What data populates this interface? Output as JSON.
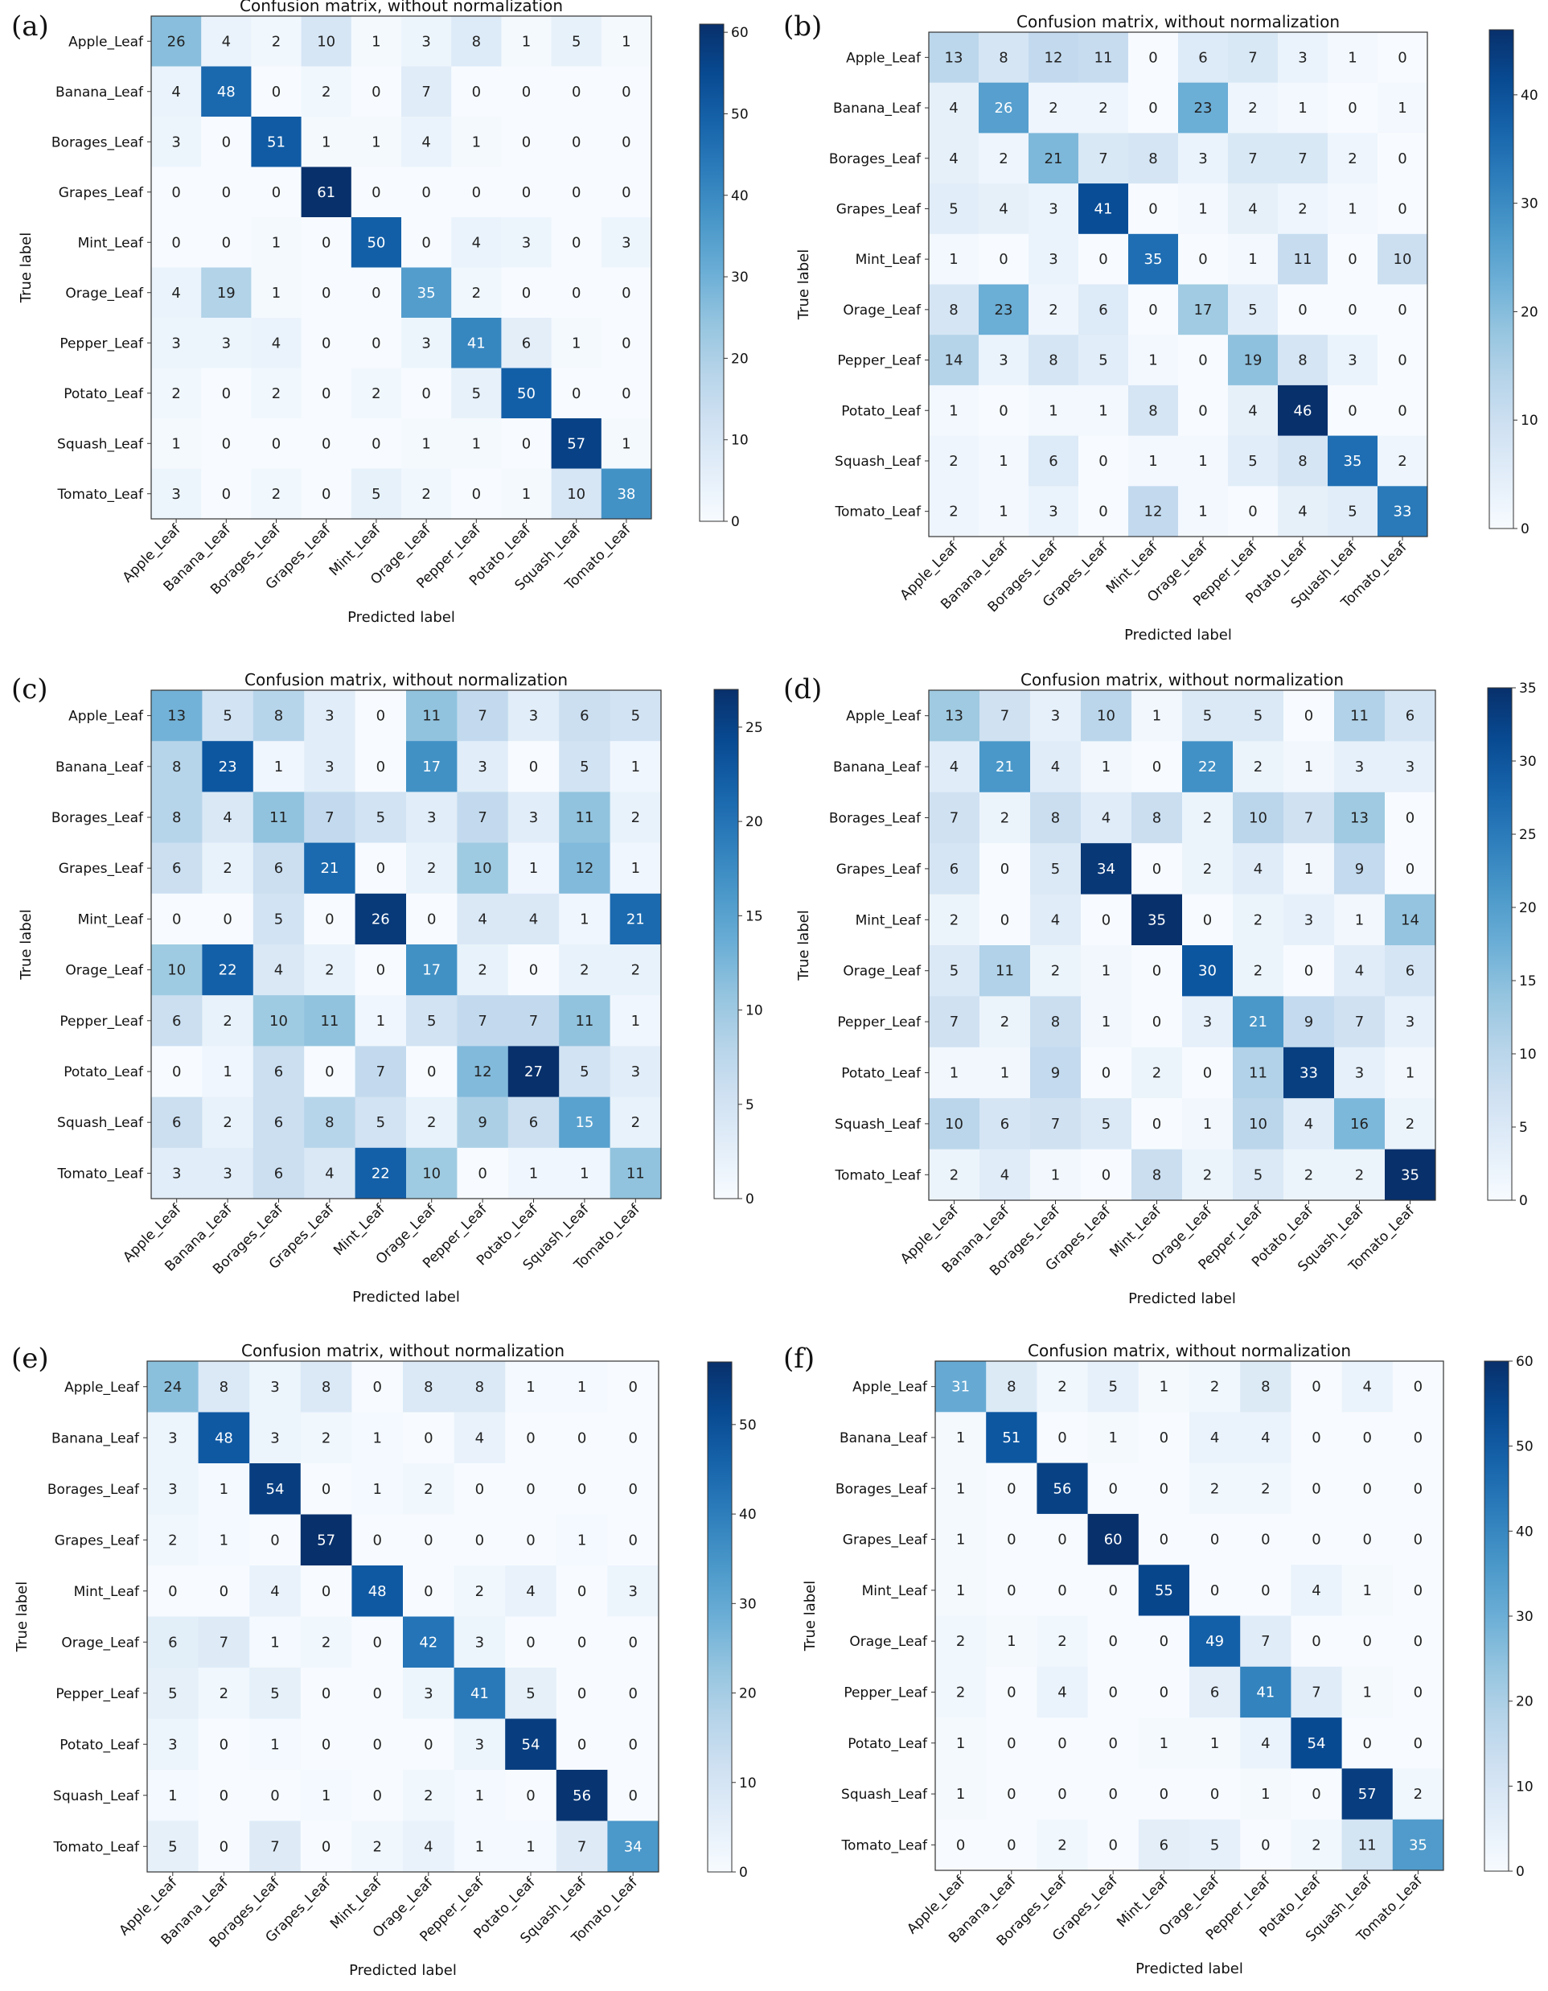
{
  "colormap": {
    "name": "Blues",
    "low": "#f7fbff",
    "high": "#08306b"
  },
  "chart_data": [
    {
      "panel": "(a)",
      "type": "heatmap",
      "title": "Confusion matrix, without normalization",
      "xlabel": "Predicted label",
      "ylabel": "True label",
      "labels": [
        "Apple_Leaf",
        "Banana_Leaf",
        "Borages_Leaf",
        "Grapes_Leaf",
        "Mint_Leaf",
        "Orage_Leaf",
        "Pepper_Leaf",
        "Potato_Leaf",
        "Squash_Leaf",
        "Tomato_Leaf"
      ],
      "colorbar": {
        "min": 0,
        "max": 61,
        "ticks": [
          0,
          10,
          20,
          30,
          40,
          50,
          60
        ]
      },
      "matrix": [
        [
          26,
          4,
          2,
          10,
          1,
          3,
          8,
          1,
          5,
          1
        ],
        [
          4,
          48,
          0,
          2,
          0,
          7,
          0,
          0,
          0,
          0
        ],
        [
          3,
          0,
          51,
          1,
          1,
          4,
          1,
          0,
          0,
          0
        ],
        [
          0,
          0,
          0,
          61,
          0,
          0,
          0,
          0,
          0,
          0
        ],
        [
          0,
          0,
          1,
          0,
          50,
          0,
          4,
          3,
          0,
          3
        ],
        [
          4,
          19,
          1,
          0,
          0,
          35,
          2,
          0,
          0,
          0
        ],
        [
          3,
          3,
          4,
          0,
          0,
          3,
          41,
          6,
          1,
          0
        ],
        [
          2,
          0,
          2,
          0,
          2,
          0,
          5,
          50,
          0,
          0
        ],
        [
          1,
          0,
          0,
          0,
          0,
          1,
          1,
          0,
          57,
          1
        ],
        [
          3,
          0,
          2,
          0,
          5,
          2,
          0,
          1,
          10,
          38
        ]
      ]
    },
    {
      "panel": "(b)",
      "type": "heatmap",
      "title": "Confusion matrix, without normalization",
      "xlabel": "Predicted label",
      "ylabel": "True label",
      "labels": [
        "Apple_Leaf",
        "Banana_Leaf",
        "Borages_Leaf",
        "Grapes_Leaf",
        "Mint_Leaf",
        "Orage_Leaf",
        "Pepper_Leaf",
        "Potato_Leaf",
        "Squash_Leaf",
        "Tomato_Leaf"
      ],
      "colorbar": {
        "min": 0,
        "max": 46,
        "ticks": [
          0,
          10,
          20,
          30,
          40
        ]
      },
      "matrix": [
        [
          13,
          8,
          12,
          11,
          0,
          6,
          7,
          3,
          1,
          0
        ],
        [
          4,
          26,
          2,
          2,
          0,
          23,
          2,
          1,
          0,
          1
        ],
        [
          4,
          2,
          21,
          7,
          8,
          3,
          7,
          7,
          2,
          0
        ],
        [
          5,
          4,
          3,
          41,
          0,
          1,
          4,
          2,
          1,
          0
        ],
        [
          1,
          0,
          3,
          0,
          35,
          0,
          1,
          11,
          0,
          10
        ],
        [
          8,
          23,
          2,
          6,
          0,
          17,
          5,
          0,
          0,
          0
        ],
        [
          14,
          3,
          8,
          5,
          1,
          0,
          19,
          8,
          3,
          0
        ],
        [
          1,
          0,
          1,
          1,
          8,
          0,
          4,
          46,
          0,
          0
        ],
        [
          2,
          1,
          6,
          0,
          1,
          1,
          5,
          8,
          35,
          2
        ],
        [
          2,
          1,
          3,
          0,
          12,
          1,
          0,
          4,
          5,
          33
        ]
      ]
    },
    {
      "panel": "(c)",
      "type": "heatmap",
      "title": "Confusion matrix, without normalization",
      "xlabel": "Predicted label",
      "ylabel": "True label",
      "labels": [
        "Apple_Leaf",
        "Banana_Leaf",
        "Borages_Leaf",
        "Grapes_Leaf",
        "Mint_Leaf",
        "Orage_Leaf",
        "Pepper_Leaf",
        "Potato_Leaf",
        "Squash_Leaf",
        "Tomato_Leaf"
      ],
      "colorbar": {
        "min": 0,
        "max": 27,
        "ticks": [
          0,
          5,
          10,
          15,
          20,
          25
        ]
      },
      "matrix": [
        [
          13,
          5,
          8,
          3,
          0,
          11,
          7,
          3,
          6,
          5
        ],
        [
          8,
          23,
          1,
          3,
          0,
          17,
          3,
          0,
          5,
          1
        ],
        [
          8,
          4,
          11,
          7,
          5,
          3,
          7,
          3,
          11,
          2
        ],
        [
          6,
          2,
          6,
          21,
          0,
          2,
          10,
          1,
          12,
          1
        ],
        [
          0,
          0,
          5,
          0,
          26,
          0,
          4,
          4,
          1,
          21
        ],
        [
          10,
          22,
          4,
          2,
          0,
          17,
          2,
          0,
          2,
          2
        ],
        [
          6,
          2,
          10,
          11,
          1,
          5,
          7,
          7,
          11,
          1
        ],
        [
          0,
          1,
          6,
          0,
          7,
          0,
          12,
          27,
          5,
          3
        ],
        [
          6,
          2,
          6,
          8,
          5,
          2,
          9,
          6,
          15,
          2
        ],
        [
          3,
          3,
          6,
          4,
          22,
          10,
          0,
          1,
          1,
          11
        ]
      ]
    },
    {
      "panel": "(d)",
      "type": "heatmap",
      "title": "Confusion matrix, without normalization",
      "xlabel": "Predicted label",
      "ylabel": "True label",
      "labels": [
        "Apple_Leaf",
        "Banana_Leaf",
        "Borages_Leaf",
        "Grapes_Leaf",
        "Mint_Leaf",
        "Orage_Leaf",
        "Pepper_Leaf",
        "Potato_Leaf",
        "Squash_Leaf",
        "Tomato_Leaf"
      ],
      "colorbar": {
        "min": 0,
        "max": 35,
        "ticks": [
          0,
          5,
          10,
          15,
          20,
          25,
          30,
          35
        ]
      },
      "matrix": [
        [
          13,
          7,
          3,
          10,
          1,
          5,
          5,
          0,
          11,
          6
        ],
        [
          4,
          21,
          4,
          1,
          0,
          22,
          2,
          1,
          3,
          3
        ],
        [
          7,
          2,
          8,
          4,
          8,
          2,
          10,
          7,
          13,
          0
        ],
        [
          6,
          0,
          5,
          34,
          0,
          2,
          4,
          1,
          9,
          0
        ],
        [
          2,
          0,
          4,
          0,
          35,
          0,
          2,
          3,
          1,
          14
        ],
        [
          5,
          11,
          2,
          1,
          0,
          30,
          2,
          0,
          4,
          6
        ],
        [
          7,
          2,
          8,
          1,
          0,
          3,
          21,
          9,
          7,
          3
        ],
        [
          1,
          1,
          9,
          0,
          2,
          0,
          11,
          33,
          3,
          1
        ],
        [
          10,
          6,
          7,
          5,
          0,
          1,
          10,
          4,
          16,
          2
        ],
        [
          2,
          4,
          1,
          0,
          8,
          2,
          5,
          2,
          2,
          35
        ]
      ]
    },
    {
      "panel": "(e)",
      "type": "heatmap",
      "title": "Confusion matrix, without normalization",
      "xlabel": "Predicted label",
      "ylabel": "True label",
      "labels": [
        "Apple_Leaf",
        "Banana_Leaf",
        "Borages_Leaf",
        "Grapes_Leaf",
        "Mint_Leaf",
        "Orage_Leaf",
        "Pepper_Leaf",
        "Potato_Leaf",
        "Squash_Leaf",
        "Tomato_Leaf"
      ],
      "colorbar": {
        "min": 0,
        "max": 57,
        "ticks": [
          0,
          10,
          20,
          30,
          40,
          50
        ]
      },
      "matrix": [
        [
          24,
          8,
          3,
          8,
          0,
          8,
          8,
          1,
          1,
          0
        ],
        [
          3,
          48,
          3,
          2,
          1,
          0,
          4,
          0,
          0,
          0
        ],
        [
          3,
          1,
          54,
          0,
          1,
          2,
          0,
          0,
          0,
          0
        ],
        [
          2,
          1,
          0,
          57,
          0,
          0,
          0,
          0,
          1,
          0
        ],
        [
          0,
          0,
          4,
          0,
          48,
          0,
          2,
          4,
          0,
          3
        ],
        [
          6,
          7,
          1,
          2,
          0,
          42,
          3,
          0,
          0,
          0
        ],
        [
          5,
          2,
          5,
          0,
          0,
          3,
          41,
          5,
          0,
          0
        ],
        [
          3,
          0,
          1,
          0,
          0,
          0,
          3,
          54,
          0,
          0
        ],
        [
          1,
          0,
          0,
          1,
          0,
          2,
          1,
          0,
          56,
          0
        ],
        [
          5,
          0,
          7,
          0,
          2,
          4,
          1,
          1,
          7,
          34
        ]
      ]
    },
    {
      "panel": "(f)",
      "type": "heatmap",
      "title": "Confusion matrix, without normalization",
      "xlabel": "Predicted label",
      "ylabel": "True label",
      "labels": [
        "Apple_Leaf",
        "Banana_Leaf",
        "Borages_Leaf",
        "Grapes_Leaf",
        "Mint_Leaf",
        "Orage_Leaf",
        "Pepper_Leaf",
        "Potato_Leaf",
        "Squash_Leaf",
        "Tomato_Leaf"
      ],
      "colorbar": {
        "min": 0,
        "max": 60,
        "ticks": [
          0,
          10,
          20,
          30,
          40,
          50,
          60
        ]
      },
      "matrix": [
        [
          31,
          8,
          2,
          5,
          1,
          2,
          8,
          0,
          4,
          0
        ],
        [
          1,
          51,
          0,
          1,
          0,
          4,
          4,
          0,
          0,
          0
        ],
        [
          1,
          0,
          56,
          0,
          0,
          2,
          2,
          0,
          0,
          0
        ],
        [
          1,
          0,
          0,
          60,
          0,
          0,
          0,
          0,
          0,
          0
        ],
        [
          1,
          0,
          0,
          0,
          55,
          0,
          0,
          4,
          1,
          0
        ],
        [
          2,
          1,
          2,
          0,
          0,
          49,
          7,
          0,
          0,
          0
        ],
        [
          2,
          0,
          4,
          0,
          0,
          6,
          41,
          7,
          1,
          0
        ],
        [
          1,
          0,
          0,
          0,
          1,
          1,
          4,
          54,
          0,
          0
        ],
        [
          1,
          0,
          0,
          0,
          0,
          0,
          1,
          0,
          57,
          2
        ],
        [
          0,
          0,
          2,
          0,
          6,
          5,
          0,
          2,
          11,
          35
        ]
      ]
    }
  ]
}
